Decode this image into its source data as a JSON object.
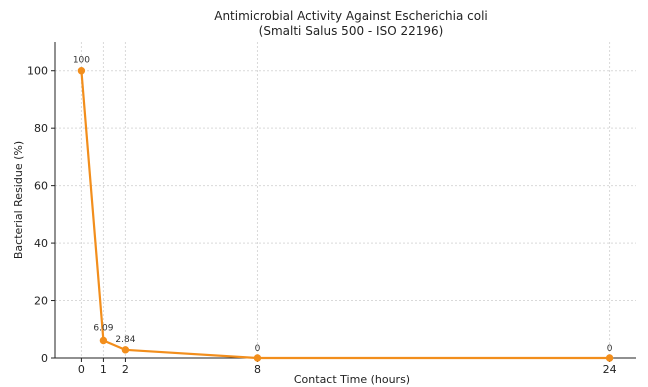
{
  "chart_data": {
    "type": "line",
    "title": "Antimicrobial Activity Against Escherichia coli",
    "subtitle": "(Smalti Salus 500 - ISO 22196)",
    "xlabel": "Contact Time (hours)",
    "ylabel": "Bacterial Residue (%)",
    "x": [
      0,
      1,
      2,
      8,
      24
    ],
    "series": [
      {
        "values": [
          100,
          6.09,
          2.84,
          0,
          0
        ],
        "color": "#f28e1c",
        "marker": "circle"
      }
    ],
    "data_labels": [
      "100",
      "6.09",
      "2.84",
      "0",
      "0"
    ],
    "x_ticks": [
      0,
      1,
      2,
      8,
      24
    ],
    "x_tick_labels": [
      "0",
      "1",
      "2",
      "8",
      "24"
    ],
    "y_ticks": [
      0,
      20,
      40,
      60,
      80,
      100
    ],
    "y_tick_labels": [
      "0",
      "20",
      "40",
      "60",
      "80",
      "100"
    ],
    "xlim": [
      -1.2,
      25.2
    ],
    "ylim": [
      0,
      110
    ],
    "grid": true,
    "legend": "none"
  }
}
